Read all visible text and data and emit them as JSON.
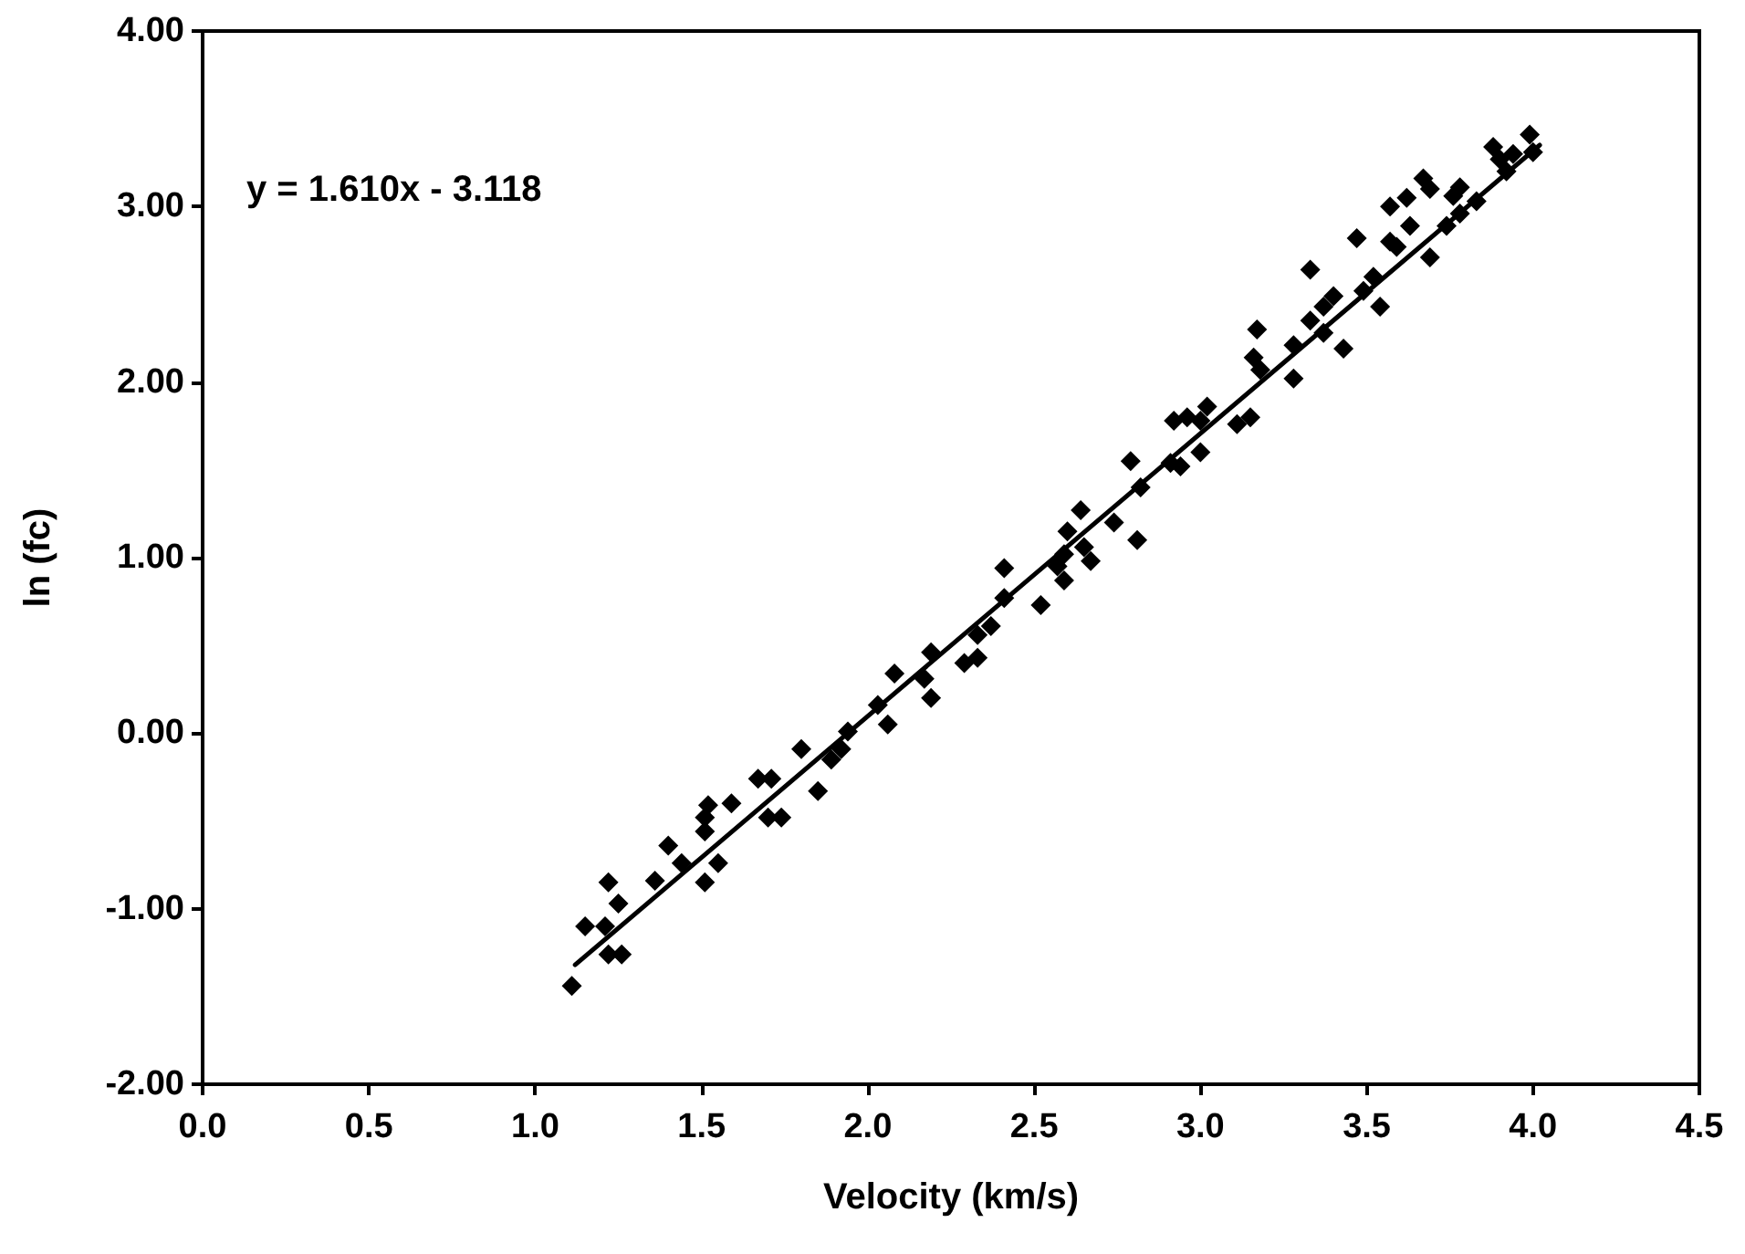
{
  "chart_data": {
    "type": "scatter",
    "xlabel": "Velocity (km/s)",
    "ylabel": "ln (fc)",
    "annotations": [
      "y = 1.610x - 3.118"
    ],
    "xlim": [
      0,
      4.5
    ],
    "xticks": [
      {
        "value": 0,
        "label": "0.0"
      },
      {
        "value": 0.5,
        "label": "0.5"
      },
      {
        "value": 1,
        "label": "1.0"
      },
      {
        "value": 1.5,
        "label": "1.5"
      },
      {
        "value": 2,
        "label": "2.0"
      },
      {
        "value": 2.5,
        "label": "2.5"
      },
      {
        "value": 3,
        "label": "3.0"
      },
      {
        "value": 3.5,
        "label": "3.5"
      },
      {
        "value": 4,
        "label": "4.0"
      },
      {
        "value": 4.5,
        "label": "4.5"
      }
    ],
    "ylim": [
      -2,
      4
    ],
    "yticks": [
      {
        "value": -2,
        "label": "-2.00"
      },
      {
        "value": -1,
        "label": "-1.00"
      },
      {
        "value": 0,
        "label": "0.00"
      },
      {
        "value": 1,
        "label": "1.00"
      },
      {
        "value": 2,
        "label": "2.00"
      },
      {
        "value": 3,
        "label": "3.00"
      },
      {
        "value": 4,
        "label": "4.00"
      }
    ],
    "grid": false,
    "series": [
      {
        "color": "#000000",
        "marker": "diamond",
        "x": [
          1.11,
          1.15,
          1.21,
          1.22,
          1.25,
          1.22,
          1.26,
          1.36,
          1.4,
          1.44,
          1.51,
          1.55,
          1.51,
          1.51,
          1.52,
          1.59,
          1.67,
          1.71,
          1.7,
          1.74,
          1.8,
          1.85,
          1.89,
          1.92,
          1.94,
          2.03,
          2.06,
          2.19,
          2.08,
          2.17,
          2.19,
          2.29,
          2.33,
          2.33,
          2.37,
          2.41,
          2.41,
          2.52,
          2.57,
          2.59,
          2.59,
          2.6,
          2.64,
          2.65,
          2.67,
          2.74,
          2.81,
          2.79,
          2.82,
          2.91,
          2.94,
          3.0,
          2.92,
          2.96,
          3.0,
          3.02,
          3.11,
          3.15,
          3.16,
          3.17,
          3.18,
          3.28,
          3.28,
          3.33,
          3.33,
          3.37,
          3.37,
          3.4,
          3.43,
          3.47,
          3.49,
          3.52,
          3.54,
          3.57,
          3.57,
          3.62,
          3.59,
          3.63,
          3.67,
          3.69,
          3.69,
          3.74,
          3.76,
          3.78,
          3.78,
          3.83,
          3.88,
          3.92,
          3.94,
          3.99,
          4.0,
          3.9
        ],
        "values": [
          -1.44,
          -1.1,
          -1.1,
          -0.85,
          -0.97,
          -1.26,
          -1.26,
          -0.84,
          -0.64,
          -0.74,
          -0.85,
          -0.74,
          -0.56,
          -0.48,
          -0.41,
          -0.4,
          -0.26,
          -0.26,
          -0.48,
          -0.48,
          -0.09,
          -0.33,
          -0.15,
          -0.09,
          0.01,
          0.16,
          0.05,
          0.2,
          0.34,
          0.31,
          0.46,
          0.4,
          0.43,
          0.56,
          0.61,
          0.77,
          0.94,
          0.73,
          0.95,
          0.87,
          1.02,
          1.15,
          1.27,
          1.06,
          0.98,
          1.2,
          1.1,
          1.55,
          1.4,
          1.54,
          1.52,
          1.6,
          1.78,
          1.8,
          1.78,
          1.86,
          1.76,
          1.8,
          2.14,
          2.3,
          2.07,
          2.02,
          2.21,
          2.35,
          2.64,
          2.28,
          2.43,
          2.49,
          2.19,
          2.82,
          2.52,
          2.6,
          2.43,
          2.8,
          3.0,
          3.05,
          2.77,
          2.89,
          3.16,
          3.1,
          2.71,
          2.89,
          3.06,
          3.11,
          2.96,
          3.03,
          3.34,
          3.2,
          3.3,
          3.41,
          3.31,
          3.27
        ]
      },
      {
        "type": "line",
        "color": "#000000",
        "x": [
          1.12,
          4.02
        ],
        "values": [
          -1.32,
          3.35
        ],
        "line_style": "solid",
        "marker": "none"
      }
    ]
  }
}
